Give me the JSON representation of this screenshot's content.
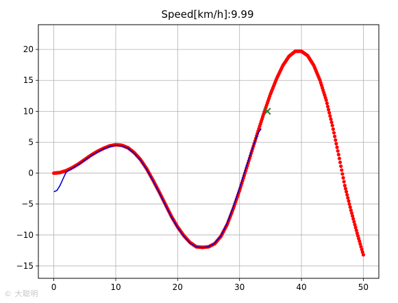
{
  "chart_data": {
    "type": "line",
    "title": "Speed[km/h]:9.99",
    "xlabel": "",
    "ylabel": "",
    "xlim": [
      -2.5,
      52.5
    ],
    "ylim": [
      -17,
      24
    ],
    "x_ticks": [
      0,
      10,
      20,
      30,
      40,
      50
    ],
    "y_ticks": [
      -15,
      -10,
      -5,
      0,
      5,
      10,
      15,
      20
    ],
    "grid": true,
    "legend": "none",
    "series": [
      {
        "style": "red-dot-markers",
        "color": "#ff0000",
        "x": [
          0,
          1,
          2,
          3,
          4,
          5,
          6,
          7,
          8,
          9,
          10,
          11,
          12,
          13,
          14,
          15,
          16,
          17,
          18,
          19,
          20,
          21,
          22,
          23,
          24,
          25,
          26,
          27,
          28,
          29,
          30,
          31,
          32,
          33,
          34,
          35,
          36,
          37,
          38,
          39,
          40,
          41,
          42,
          43,
          44,
          45,
          46,
          47,
          48,
          49,
          50
        ],
        "y": [
          0.0,
          0.1,
          0.4,
          0.9,
          1.5,
          2.2,
          2.9,
          3.5,
          4.0,
          4.4,
          4.6,
          4.5,
          4.1,
          3.3,
          2.2,
          0.7,
          -1.1,
          -3.0,
          -5.0,
          -7.0,
          -8.7,
          -10.1,
          -11.2,
          -11.9,
          -12.0,
          -11.9,
          -11.4,
          -10.2,
          -8.3,
          -5.7,
          -2.8,
          0.4,
          3.6,
          6.8,
          9.9,
          12.8,
          15.3,
          17.4,
          18.9,
          19.7,
          19.7,
          19.0,
          17.4,
          15.0,
          11.8,
          7.7,
          3.0,
          -2.0,
          -6.0,
          -9.7,
          -13.2
        ]
      },
      {
        "style": "blue-line",
        "color": "#0000cc",
        "x": [
          0,
          0.5,
          1,
          1.5,
          2,
          3,
          4,
          5,
          6,
          7,
          8,
          9,
          10,
          11,
          12,
          13,
          14,
          15,
          16,
          17,
          18,
          19,
          20,
          21,
          22,
          23,
          24,
          25,
          26,
          27,
          28,
          29,
          30,
          31,
          32,
          33,
          33.5
        ],
        "y": [
          -3.0,
          -2.8,
          -2.0,
          -0.9,
          0.2,
          0.8,
          1.4,
          2.1,
          2.8,
          3.4,
          3.9,
          4.3,
          4.5,
          4.4,
          4.0,
          3.2,
          2.1,
          0.6,
          -1.2,
          -3.1,
          -5.1,
          -7.1,
          -8.8,
          -10.2,
          -11.3,
          -11.9,
          -12.0,
          -11.9,
          -11.3,
          -10.1,
          -8.1,
          -5.4,
          -2.4,
          0.8,
          3.8,
          6.5,
          7.2
        ]
      },
      {
        "style": "green-x-marker",
        "color": "#2a7a2a",
        "x": [
          34.5
        ],
        "y": [
          10.0
        ]
      }
    ]
  },
  "watermark": "© 大聪明"
}
